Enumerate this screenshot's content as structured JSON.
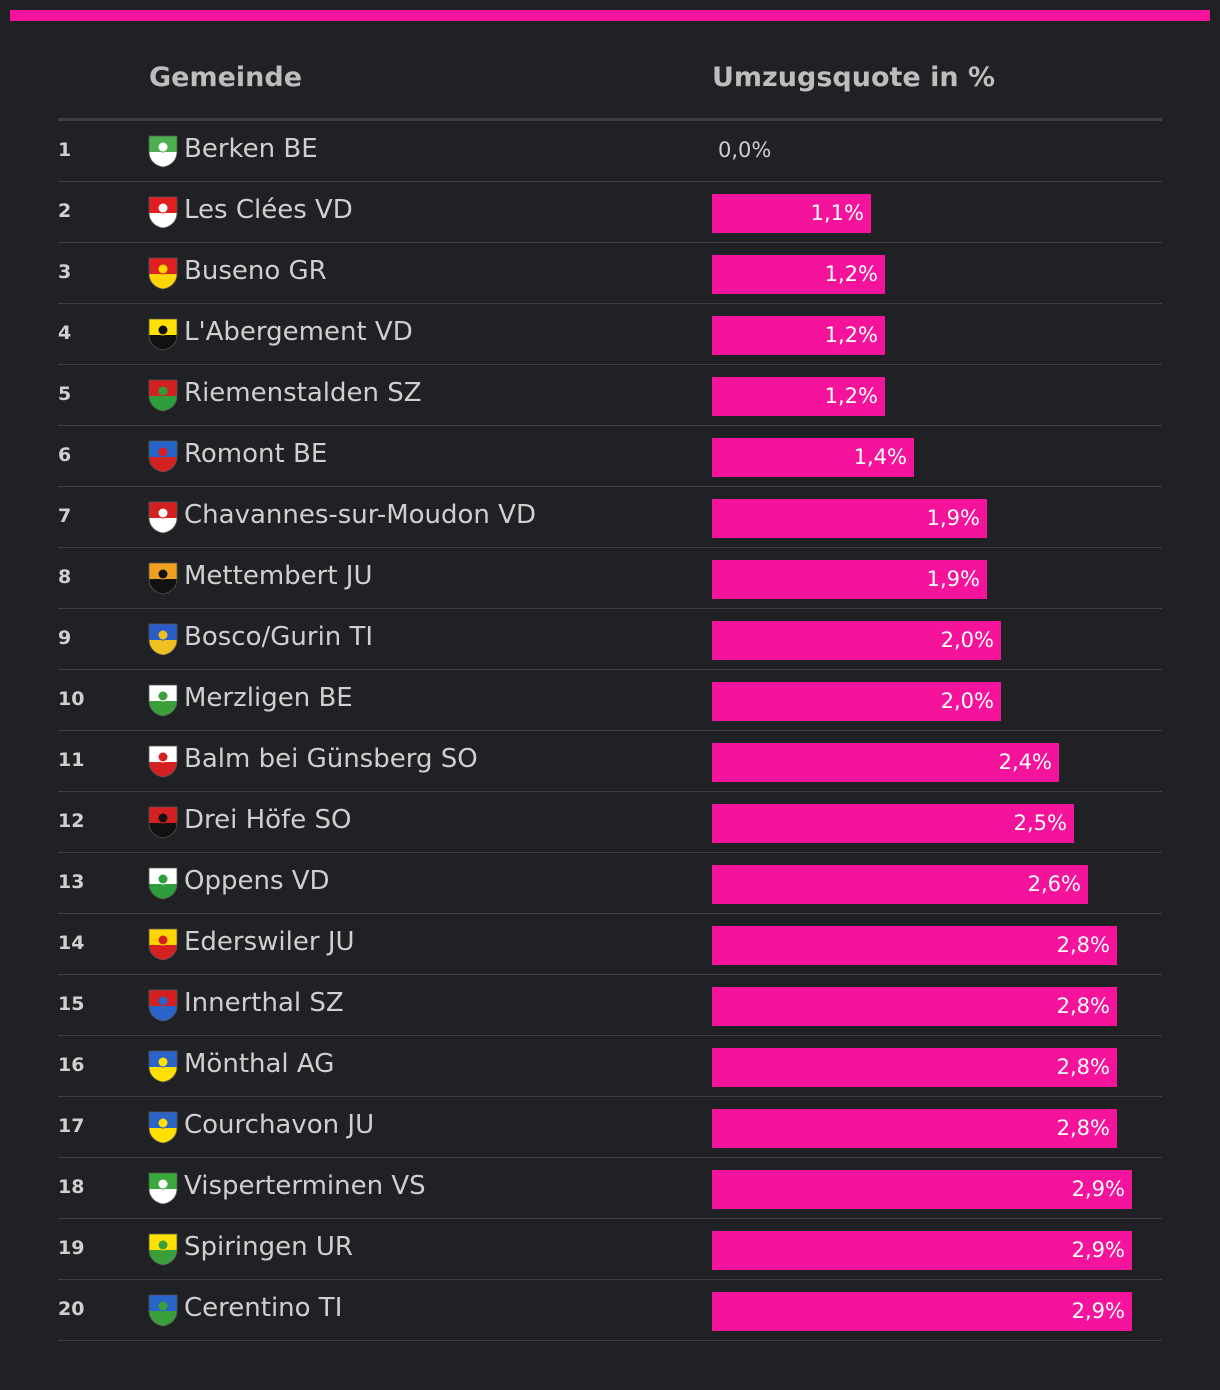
{
  "colors": {
    "accent": "#f5139b",
    "background": "#202124",
    "divider": "#3d3f43"
  },
  "chart_data": {
    "type": "bar",
    "orientation": "horizontal",
    "columns": [
      "Gemeinde",
      "Umzugsquote in %"
    ],
    "xlim": [
      0,
      3.2
    ],
    "rows": [
      {
        "rank": "1",
        "name": "Berken BE",
        "value": 0.0,
        "label": "0,0%",
        "crest": "crest-berken-icon",
        "c1": "#4caf50",
        "c2": "#ffffff"
      },
      {
        "rank": "2",
        "name": "Les Clées VD",
        "value": 1.1,
        "label": "1,1%",
        "crest": "crest-les-clees-icon",
        "c1": "#e02020",
        "c2": "#ffffff"
      },
      {
        "rank": "3",
        "name": "Buseno GR",
        "value": 1.2,
        "label": "1,2%",
        "crest": "crest-buseno-icon",
        "c1": "#e02020",
        "c2": "#ffd500"
      },
      {
        "rank": "4",
        "name": "L'Abergement VD",
        "value": 1.2,
        "label": "1,2%",
        "crest": "crest-labergement-icon",
        "c1": "#ffe000",
        "c2": "#111111"
      },
      {
        "rank": "5",
        "name": "Riemenstalden SZ",
        "value": 1.2,
        "label": "1,2%",
        "crest": "crest-riemenstalden-icon",
        "c1": "#d42020",
        "c2": "#2e9e3a"
      },
      {
        "rank": "6",
        "name": "Romont BE",
        "value": 1.4,
        "label": "1,4%",
        "crest": "crest-romont-icon",
        "c1": "#2464c8",
        "c2": "#d42020"
      },
      {
        "rank": "7",
        "name": "Chavannes-sur-Moudon VD",
        "value": 1.9,
        "label": "1,9%",
        "crest": "crest-chavannes-icon",
        "c1": "#d42020",
        "c2": "#ffffff"
      },
      {
        "rank": "8",
        "name": "Mettembert JU",
        "value": 1.9,
        "label": "1,9%",
        "crest": "crest-mettembert-icon",
        "c1": "#f0a020",
        "c2": "#111111"
      },
      {
        "rank": "9",
        "name": "Bosco/Gurin TI",
        "value": 2.0,
        "label": "2,0%",
        "crest": "crest-bosco-gurin-icon",
        "c1": "#2a5cc8",
        "c2": "#f0c020"
      },
      {
        "rank": "10",
        "name": "Merzligen BE",
        "value": 2.0,
        "label": "2,0%",
        "crest": "crest-merzligen-icon",
        "c1": "#ffffff",
        "c2": "#3a9e3a"
      },
      {
        "rank": "11",
        "name": "Balm bei Günsberg SO",
        "value": 2.4,
        "label": "2,4%",
        "crest": "crest-balm-icon",
        "c1": "#ffffff",
        "c2": "#d42020"
      },
      {
        "rank": "12",
        "name": "Drei Höfe SO",
        "value": 2.5,
        "label": "2,5%",
        "crest": "crest-drei-hoefe-icon",
        "c1": "#d42020",
        "c2": "#111111"
      },
      {
        "rank": "13",
        "name": "Oppens VD",
        "value": 2.6,
        "label": "2,6%",
        "crest": "crest-oppens-icon",
        "c1": "#ffffff",
        "c2": "#2e9e3a"
      },
      {
        "rank": "14",
        "name": "Ederswiler JU",
        "value": 2.8,
        "label": "2,8%",
        "crest": "crest-ederswiler-icon",
        "c1": "#ffd500",
        "c2": "#d42020"
      },
      {
        "rank": "15",
        "name": "Innerthal SZ",
        "value": 2.8,
        "label": "2,8%",
        "crest": "crest-innerthal-icon",
        "c1": "#d42020",
        "c2": "#2a64c8"
      },
      {
        "rank": "16",
        "name": "Mönthal AG",
        "value": 2.8,
        "label": "2,8%",
        "crest": "crest-moenthal-icon",
        "c1": "#2a64c8",
        "c2": "#ffe000"
      },
      {
        "rank": "17",
        "name": "Courchavon JU",
        "value": 2.8,
        "label": "2,8%",
        "crest": "crest-courchavon-icon",
        "c1": "#2a64c8",
        "c2": "#ffe000"
      },
      {
        "rank": "18",
        "name": "Visperterminen VS",
        "value": 2.9,
        "label": "2,9%",
        "crest": "crest-visperterminen-icon",
        "c1": "#3aa83a",
        "c2": "#ffffff"
      },
      {
        "rank": "19",
        "name": "Spiringen UR",
        "value": 2.9,
        "label": "2,9%",
        "crest": "crest-spiringen-icon",
        "c1": "#ffe000",
        "c2": "#3a9e3a"
      },
      {
        "rank": "20",
        "name": "Cerentino TI",
        "value": 2.9,
        "label": "2,9%",
        "crest": "crest-cerentino-icon",
        "c1": "#2a64c8",
        "c2": "#3a9e3a"
      }
    ]
  }
}
